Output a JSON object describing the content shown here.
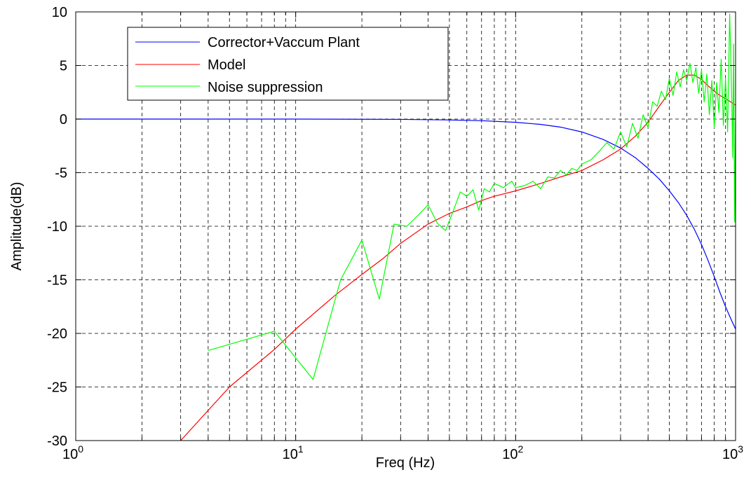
{
  "chart_data": {
    "type": "line",
    "title": "",
    "xlabel": "Freq (Hz)",
    "ylabel": "Amplitude(dB)",
    "xscale": "log",
    "xlim": [
      1,
      1000
    ],
    "ylim": [
      -30,
      10
    ],
    "grid": true,
    "legend_position": "top-left",
    "x_tick_labels": [
      {
        "base": "10",
        "exp": "0",
        "value": 1
      },
      {
        "base": "10",
        "exp": "1",
        "value": 10
      },
      {
        "base": "10",
        "exp": "2",
        "value": 100
      },
      {
        "base": "10",
        "exp": "3",
        "value": 1000
      }
    ],
    "y_tick_labels": [
      "10",
      "5",
      "0",
      "-5",
      "-10",
      "-15",
      "-20",
      "-25",
      "-30"
    ],
    "y_ticks": [
      10,
      5,
      0,
      -5,
      -10,
      -15,
      -20,
      -25,
      -30
    ],
    "series": [
      {
        "name": "Corrector+Vaccum Plant",
        "color": "#0000ff",
        "x": [
          1,
          10,
          30,
          50,
          70,
          100,
          130,
          160,
          200,
          250,
          300,
          350,
          400,
          450,
          500,
          550,
          600,
          650,
          700,
          750,
          800,
          850,
          900,
          950,
          1000
        ],
        "y": [
          0,
          0,
          -0.03,
          -0.08,
          -0.15,
          -0.3,
          -0.5,
          -0.75,
          -1.2,
          -1.9,
          -2.7,
          -3.6,
          -4.6,
          -5.6,
          -6.7,
          -7.8,
          -9.0,
          -10.3,
          -11.7,
          -13.2,
          -14.7,
          -16.2,
          -17.5,
          -18.6,
          -19.6
        ]
      },
      {
        "name": "Model",
        "color": "#ff0000",
        "x": [
          3,
          5,
          8,
          10,
          15,
          20,
          25,
          30,
          40,
          50,
          60,
          70,
          80,
          100,
          130,
          160,
          200,
          250,
          300,
          350,
          400,
          450,
          500,
          550,
          600,
          650,
          700,
          750,
          800,
          850,
          900,
          950,
          1000
        ],
        "y": [
          -30,
          -25,
          -21.5,
          -19.6,
          -16.5,
          -14.5,
          -13,
          -11.6,
          -9.8,
          -8.8,
          -8.2,
          -7.6,
          -7.2,
          -6.7,
          -6,
          -5.4,
          -4.8,
          -3.8,
          -2.8,
          -1.6,
          -0.3,
          1.2,
          2.5,
          3.6,
          4.1,
          4.1,
          3.7,
          3.1,
          2.6,
          2.2,
          1.9,
          1.6,
          1.3
        ]
      },
      {
        "name": "Noise suppression",
        "color": "#00ff00",
        "x": [
          4,
          8,
          12,
          16,
          20,
          24,
          28,
          32,
          36,
          40,
          44,
          48,
          52,
          56,
          60,
          64,
          68,
          72,
          76,
          80,
          88,
          96,
          100,
          110,
          120,
          130,
          140,
          150,
          160,
          170,
          180,
          190,
          200,
          220,
          240,
          260,
          280,
          300,
          320,
          340,
          360,
          380,
          400,
          420,
          440,
          460,
          480,
          500,
          520,
          540,
          560,
          580,
          600,
          620,
          640,
          660,
          680,
          700,
          720,
          740,
          760,
          780,
          800,
          820,
          840,
          860,
          880,
          900,
          920,
          940,
          960,
          970,
          980,
          990,
          1000
        ],
        "y": [
          -21.6,
          -19.8,
          -24.3,
          -15,
          -11.3,
          -16.8,
          -9.8,
          -10,
          -9,
          -8,
          -9.7,
          -10.4,
          -8.6,
          -6.8,
          -7.2,
          -6.6,
          -8.5,
          -6.5,
          -6.8,
          -6,
          -6.4,
          -5.8,
          -6.4,
          -6.2,
          -5.8,
          -6.5,
          -5.4,
          -5.5,
          -4.8,
          -5.2,
          -4.6,
          -4.8,
          -4.2,
          -3.8,
          -3,
          -2.2,
          -2.8,
          -1.2,
          -2.6,
          -0.4,
          -1.8,
          0.4,
          -0.8,
          1.6,
          1.2,
          2.6,
          1.8,
          3.8,
          2.2,
          4.4,
          3,
          4.6,
          3.6,
          5.2,
          3.4,
          4.8,
          2.4,
          4.6,
          1.6,
          4.2,
          0.4,
          3.6,
          -0.8,
          3.4,
          0.6,
          5.6,
          -0.6,
          3.8,
          -1.2,
          9.8,
          2.4,
          -3.6,
          7,
          -9.6,
          -0.2
        ]
      }
    ]
  }
}
